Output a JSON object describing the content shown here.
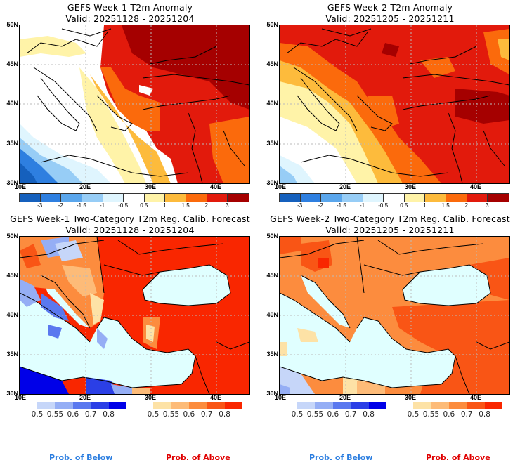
{
  "panels": [
    {
      "id": "week1-anomaly",
      "title": "GEFS Week-1 T2m Anomaly",
      "valid": "Valid: 20251128 - 20251204",
      "type": "anomaly"
    },
    {
      "id": "week2-anomaly",
      "title": "GEFS Week-2 T2m Anomaly",
      "valid": "Valid: 20251205 - 20251211",
      "type": "anomaly"
    },
    {
      "id": "week1-prob",
      "title": "GEFS Week-1 Two-Category T2m Reg. Calib. Forecast",
      "valid": "Valid: 20251128 - 20251204",
      "type": "probability"
    },
    {
      "id": "week2-prob",
      "title": "GEFS Week-2 Two-Category T2m Reg. Calib. Forecast",
      "valid": "Valid: 20251205 - 20251211",
      "type": "probability"
    }
  ],
  "axes": {
    "lat_labels": [
      "50N",
      "45N",
      "40N",
      "35N",
      "30N"
    ],
    "lon_labels": [
      "10E",
      "20E",
      "30E",
      "40E"
    ]
  },
  "anomaly_colorbar": {
    "colors": [
      "#1560bd",
      "#2e7fe0",
      "#5aa6ec",
      "#97cdf6",
      "#dff5fe",
      "#ffffff",
      "#fff3a8",
      "#fdbb3c",
      "#fb6a0c",
      "#e21a0c",
      "#a50000"
    ],
    "tick_labels": [
      "-3",
      "-2",
      "-1.5",
      "-1",
      "-0.5",
      "0.5",
      "1",
      "1.5",
      "2",
      "3"
    ]
  },
  "prob_below_colorbar": {
    "colors": [
      "#c6d6f9",
      "#95aef5",
      "#5a78ef",
      "#2b3fe6",
      "#0000e8"
    ],
    "tick_labels": [
      "0.5",
      "0.55",
      "0.6",
      "0.7",
      "0.8"
    ]
  },
  "prob_above_colorbar": {
    "colors": [
      "#fde2a6",
      "#fdbb78",
      "#fc8c3e",
      "#f95515",
      "#f92600"
    ],
    "tick_labels": [
      "0.5",
      "0.55",
      "0.6",
      "0.7",
      "0.8"
    ]
  },
  "footer": {
    "below_label": "Prob. of Below",
    "above_label": "Prob. of Above",
    "below_color": "#2a7de0",
    "above_color": "#e00000"
  },
  "map_colors": {
    "sea": "#e0ffff",
    "coast": "#000000"
  }
}
